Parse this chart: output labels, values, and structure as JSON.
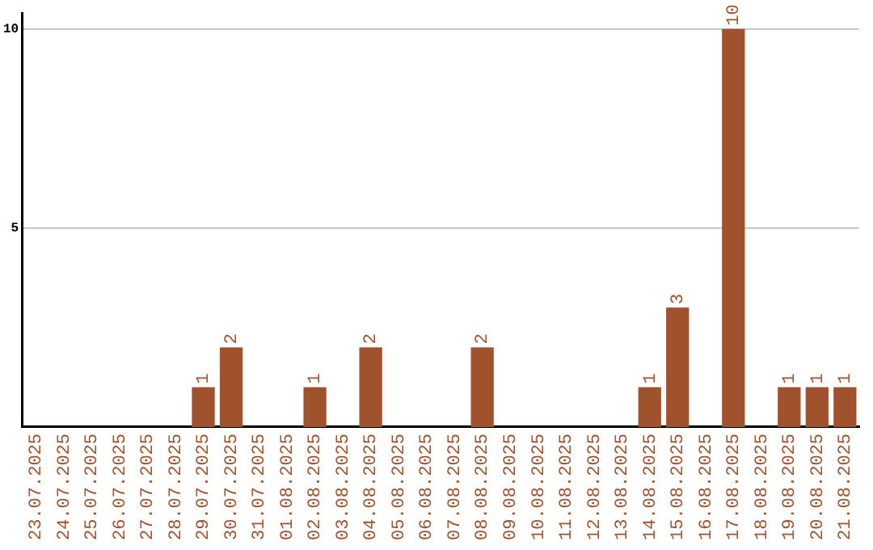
{
  "chart_data": {
    "type": "bar",
    "categories": [
      "23.07.2025",
      "24.07.2025",
      "25.07.2025",
      "26.07.2025",
      "27.07.2025",
      "28.07.2025",
      "29.07.2025",
      "30.07.2025",
      "31.07.2025",
      "01.08.2025",
      "02.08.2025",
      "03.08.2025",
      "04.08.2025",
      "05.08.2025",
      "06.08.2025",
      "07.08.2025",
      "08.08.2025",
      "09.08.2025",
      "10.08.2025",
      "11.08.2025",
      "12.08.2025",
      "13.08.2025",
      "14.08.2025",
      "15.08.2025",
      "16.08.2025",
      "17.08.2025",
      "18.08.2025",
      "19.08.2025",
      "20.08.2025",
      "21.08.2025"
    ],
    "values": [
      0,
      0,
      0,
      0,
      0,
      0,
      1,
      2,
      0,
      0,
      1,
      0,
      2,
      0,
      0,
      0,
      2,
      0,
      0,
      0,
      0,
      0,
      1,
      3,
      0,
      10,
      0,
      1,
      1,
      1
    ],
    "value_labels": [
      null,
      null,
      null,
      null,
      null,
      null,
      "1",
      "2",
      null,
      null,
      "1",
      null,
      "2",
      null,
      null,
      null,
      "2",
      null,
      null,
      null,
      null,
      null,
      "1",
      "3",
      null,
      "10",
      null,
      "1",
      "1",
      "1"
    ],
    "color": "#a0522d",
    "ylim": [
      0,
      10.4
    ],
    "yticks": [
      5,
      10
    ],
    "grid": "y",
    "legend": false
  }
}
